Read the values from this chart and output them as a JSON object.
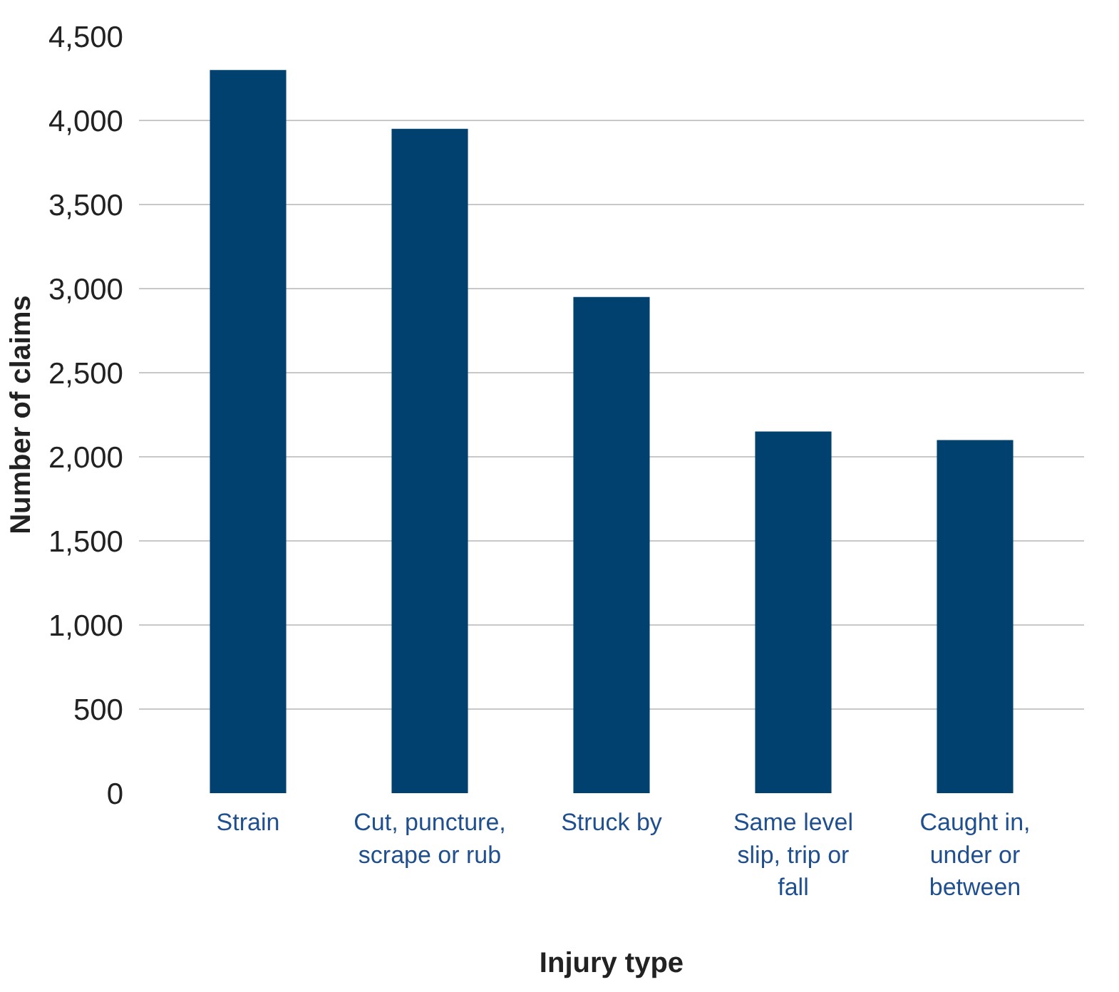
{
  "chart_data": {
    "type": "bar",
    "xlabel": "Injury type",
    "ylabel": "Number of claims",
    "categories": [
      "Strain",
      "Cut, puncture, scrape or rub",
      "Struck by",
      "Same level slip, trip or fall",
      "Caught in, under or between"
    ],
    "values": [
      4300,
      3950,
      2950,
      2150,
      2100
    ],
    "color": "#00416f",
    "ylim": [
      0,
      4500
    ],
    "yticks": [
      {
        "value": 0,
        "label": "0"
      },
      {
        "value": 500,
        "label": "500"
      },
      {
        "value": 1000,
        "label": "1,000"
      },
      {
        "value": 1500,
        "label": "1,500"
      },
      {
        "value": 2000,
        "label": "2,000"
      },
      {
        "value": 2500,
        "label": "2,500"
      },
      {
        "value": 3000,
        "label": "3,000"
      },
      {
        "value": 3500,
        "label": "3,500"
      },
      {
        "value": 4000,
        "label": "4,000"
      },
      {
        "value": 4500,
        "label": "4,500"
      }
    ],
    "grid": "y"
  }
}
